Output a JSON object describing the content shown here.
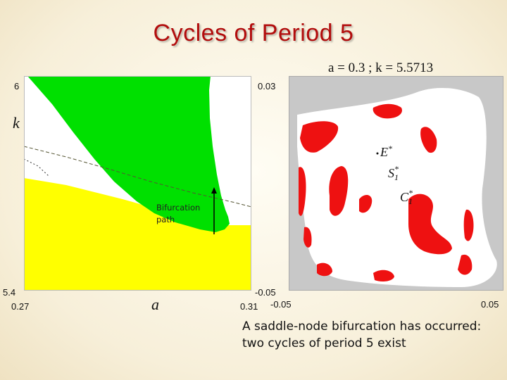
{
  "title": "Cycles of Period 5",
  "left_panel": {
    "x_axis_label": "a",
    "y_axis_label": "k",
    "x_min_tick": "0.27",
    "x_max_tick": "0.31",
    "y_max_tick": "6",
    "y_min_tick": "5.4",
    "arrow_label_line1": "Bifurcation",
    "arrow_label_line2": "path",
    "colors": {
      "upper_region": "#00e000",
      "lower_region": "#ffff00",
      "background": "#ffffff",
      "curve": "#555533"
    }
  },
  "right_panel": {
    "param_label": "a = 0.3 ;  k = 5.5713",
    "y_max_tick": "0.03",
    "y_min_tick": "-0.05",
    "x_min_tick": "-0.05",
    "x_max_tick": "0.05",
    "point_E": "E",
    "point_S": "S",
    "point_C": "C",
    "sup": "*",
    "sub": "1",
    "colors": {
      "basin": "#ffffff",
      "cycle_basins": "#ee1111",
      "outside": "#c8c8c8"
    }
  },
  "caption": "A saddle-node bifurcation has occurred:  two cycles of period 5 exist"
}
